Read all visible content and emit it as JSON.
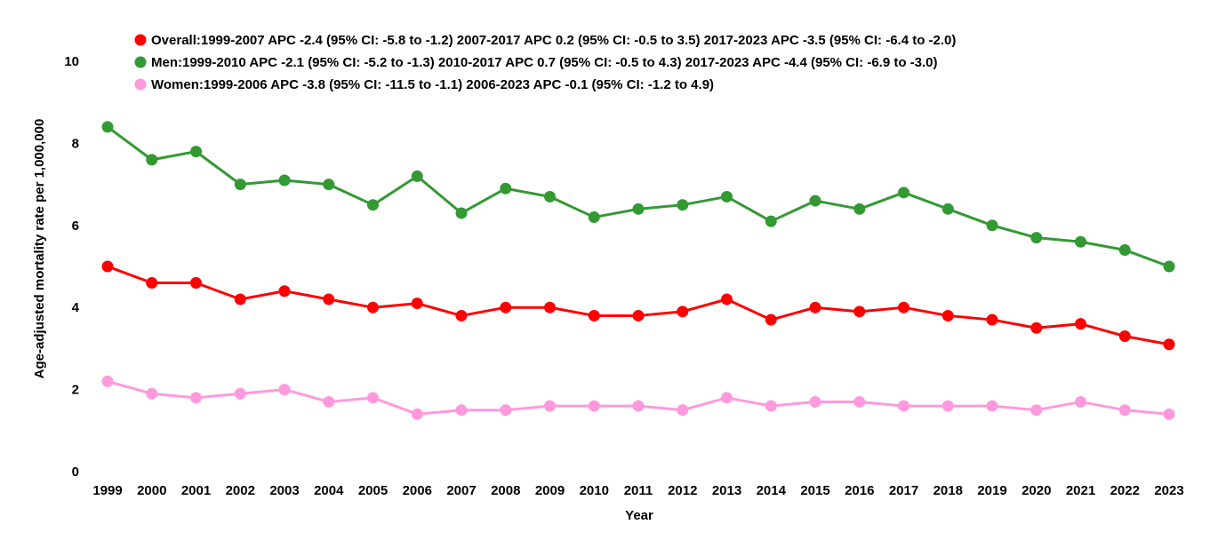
{
  "chart_data": {
    "type": "line",
    "title": "",
    "xlabel": "Year",
    "ylabel": "Age-adjusted mortality rate per 1,000,000",
    "ylim": [
      0,
      10
    ],
    "yticks": [
      "0",
      "2",
      "4",
      "6",
      "8",
      "10"
    ],
    "grid": false,
    "legend_position": "top",
    "categories": [
      "1999",
      "2000",
      "2001",
      "2002",
      "2003",
      "2004",
      "2005",
      "2006",
      "2007",
      "2008",
      "2009",
      "2010",
      "2011",
      "2012",
      "2013",
      "2014",
      "2015",
      "2016",
      "2017",
      "2018",
      "2019",
      "2020",
      "2021",
      "2022",
      "2023"
    ],
    "series": [
      {
        "name": "Overall:1999-2007 APC -2.4 (95% CI: -5.8 to -1.2) 2007-2017 APC 0.2 (95% CI: -0.5 to 3.5) 2017-2023 APC -3.5 (95% CI: -6.4 to -2.0)",
        "color": "#ff0000",
        "values": [
          5.0,
          4.6,
          4.6,
          4.2,
          4.4,
          4.2,
          4.0,
          4.1,
          3.8,
          4.0,
          4.0,
          3.8,
          3.8,
          3.9,
          4.2,
          3.7,
          4.0,
          3.9,
          4.0,
          3.8,
          3.7,
          3.5,
          3.6,
          3.3,
          3.1
        ]
      },
      {
        "name": "Men:1999-2010 APC -2.1 (95% CI: -5.2 to -1.3) 2010-2017 APC 0.7 (95% CI: -0.5 to 4.3) 2017-2023 APC -4.4 (95% CI: -6.9 to -3.0)",
        "color": "#339933",
        "values": [
          8.4,
          7.6,
          7.8,
          7.0,
          7.1,
          7.0,
          6.5,
          7.2,
          6.3,
          6.9,
          6.7,
          6.2,
          6.4,
          6.5,
          6.7,
          6.1,
          6.6,
          6.4,
          6.8,
          6.4,
          6.0,
          5.7,
          5.6,
          5.4,
          5.0
        ]
      },
      {
        "name": "Women:1999-2006 APC -3.8 (95% CI: -11.5 to -1.1) 2006-2023 APC -0.1 (95% CI: -1.2 to 4.9)",
        "color": "#ff99dd",
        "values": [
          2.2,
          1.9,
          1.8,
          1.9,
          2.0,
          1.7,
          1.8,
          1.4,
          1.5,
          1.5,
          1.6,
          1.6,
          1.6,
          1.5,
          1.8,
          1.6,
          1.7,
          1.7,
          1.6,
          1.6,
          1.6,
          1.5,
          1.7,
          1.5,
          1.4
        ]
      }
    ]
  }
}
